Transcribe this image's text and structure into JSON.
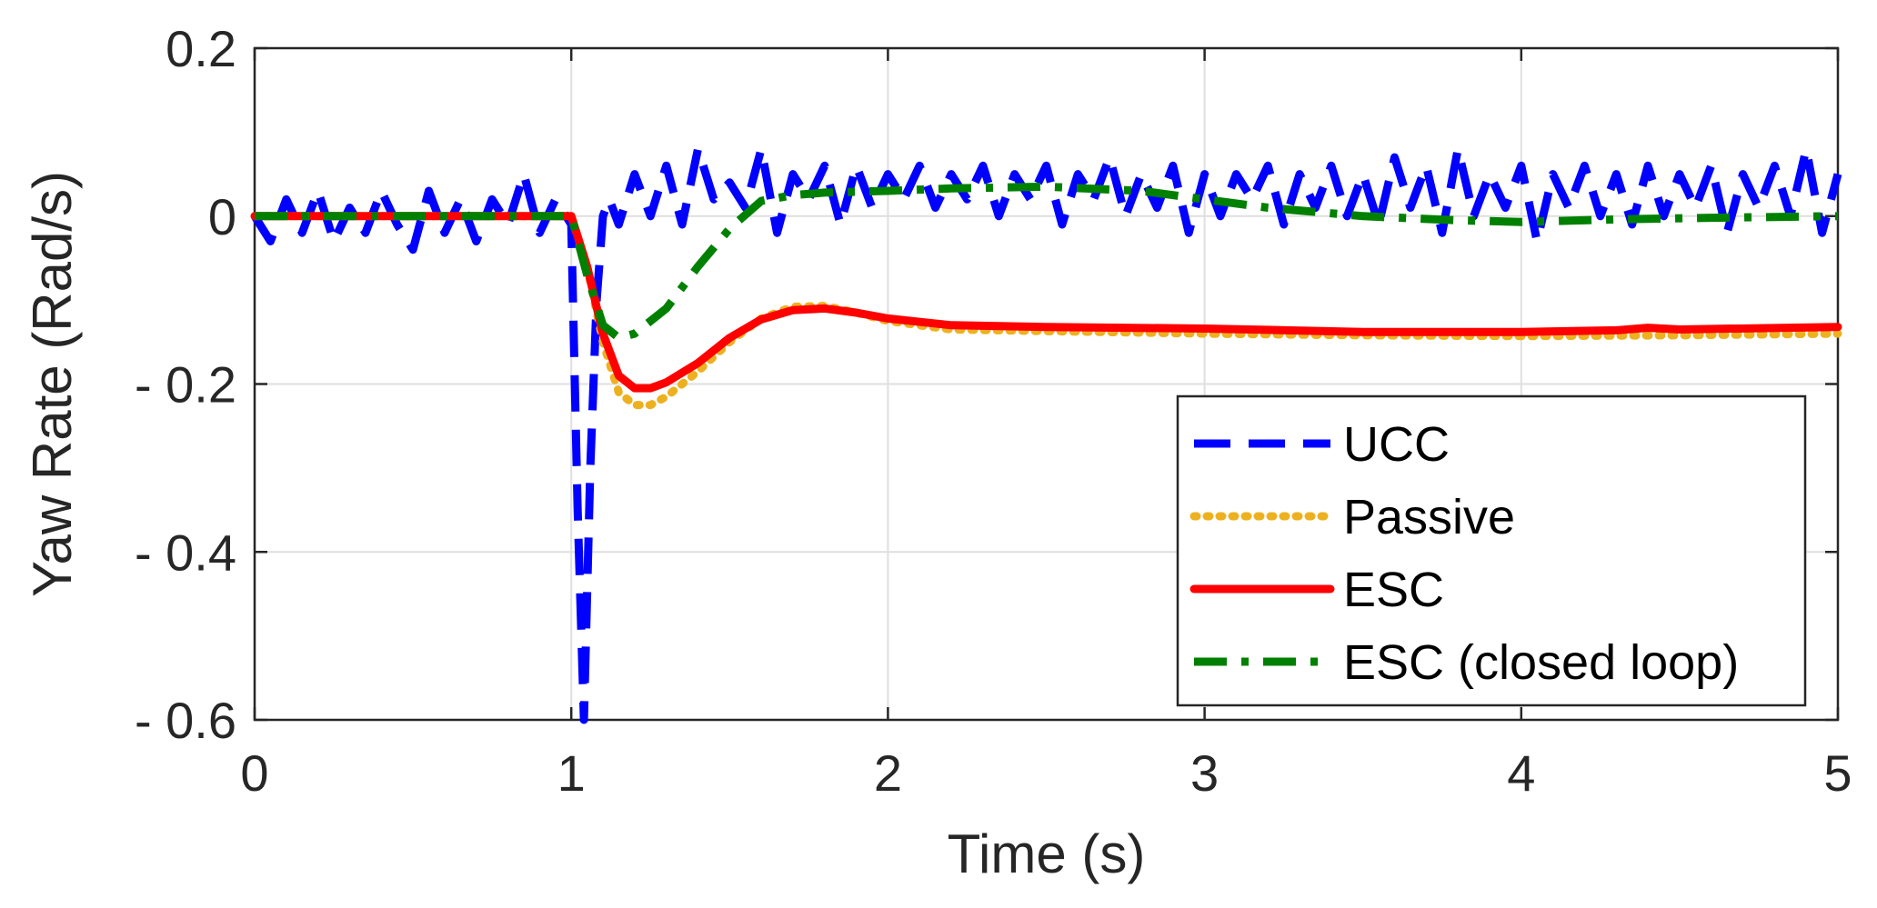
{
  "chart_data": {
    "type": "line",
    "title": "",
    "xlabel": "Time (s)",
    "ylabel": "Yaw Rate (Rad/s)",
    "xlim": [
      0,
      5
    ],
    "ylim": [
      -0.6,
      0.2
    ],
    "xticks": [
      0,
      1,
      2,
      3,
      4,
      5
    ],
    "xtick_labels": [
      "0",
      "1",
      "2",
      "3",
      "4",
      "5"
    ],
    "yticks": [
      0.2,
      0,
      -0.2,
      -0.4,
      -0.6
    ],
    "ytick_labels": [
      "0.2",
      "0",
      "- 0.2",
      "- 0.4",
      "- 0.6"
    ],
    "grid": true,
    "legend_position": "bottom-right",
    "series": [
      {
        "name": "UCC",
        "color": "#0000ff",
        "style": "dashed",
        "x": [
          0,
          0.05,
          0.1,
          0.15,
          0.2,
          0.25,
          0.3,
          0.35,
          0.4,
          0.45,
          0.5,
          0.55,
          0.6,
          0.65,
          0.7,
          0.75,
          0.8,
          0.85,
          0.9,
          0.95,
          1.0,
          1.02,
          1.04,
          1.06,
          1.08,
          1.1,
          1.12,
          1.15,
          1.2,
          1.25,
          1.3,
          1.35,
          1.4,
          1.45,
          1.5,
          1.55,
          1.6,
          1.65,
          1.7,
          1.75,
          1.8,
          1.85,
          1.9,
          1.95,
          2.0,
          2.05,
          2.1,
          2.15,
          2.2,
          2.25,
          2.3,
          2.35,
          2.4,
          2.45,
          2.5,
          2.55,
          2.6,
          2.65,
          2.7,
          2.75,
          2.8,
          2.85,
          2.9,
          2.95,
          3.0,
          3.05,
          3.1,
          3.15,
          3.2,
          3.25,
          3.3,
          3.35,
          3.4,
          3.45,
          3.5,
          3.55,
          3.6,
          3.65,
          3.7,
          3.75,
          3.8,
          3.85,
          3.9,
          3.95,
          4.0,
          4.05,
          4.1,
          4.15,
          4.2,
          4.25,
          4.3,
          4.35,
          4.4,
          4.45,
          4.5,
          4.55,
          4.6,
          4.65,
          4.7,
          4.75,
          4.8,
          4.85,
          4.9,
          4.95,
          5.0
        ],
        "y": [
          0,
          -0.03,
          0.02,
          -0.02,
          0.03,
          -0.03,
          0.01,
          -0.02,
          0.03,
          -0.01,
          -0.04,
          0.03,
          -0.02,
          0.02,
          -0.03,
          0.02,
          -0.01,
          0.05,
          -0.02,
          0.02,
          -0.01,
          -0.35,
          -0.6,
          -0.3,
          -0.1,
          0.0,
          0.02,
          -0.01,
          0.05,
          0.0,
          0.06,
          -0.01,
          0.08,
          0.02,
          0.04,
          0.01,
          0.08,
          -0.02,
          0.05,
          0.02,
          0.06,
          -0.01,
          0.06,
          0.01,
          0.05,
          0.02,
          0.06,
          0.01,
          0.05,
          0.02,
          0.06,
          0.0,
          0.05,
          0.02,
          0.06,
          -0.01,
          0.05,
          0.02,
          0.07,
          0.0,
          0.05,
          0.01,
          0.06,
          -0.02,
          0.05,
          0.0,
          0.05,
          0.02,
          0.06,
          -0.01,
          0.05,
          0.01,
          0.06,
          0.0,
          0.05,
          -0.01,
          0.07,
          0.01,
          0.06,
          -0.02,
          0.08,
          0.0,
          0.05,
          0.01,
          0.06,
          -0.03,
          0.05,
          0.01,
          0.06,
          0.0,
          0.05,
          -0.01,
          0.06,
          0.0,
          0.05,
          0.01,
          0.06,
          -0.02,
          0.05,
          0.01,
          0.06,
          0.0,
          0.08,
          -0.02,
          0.05
        ]
      },
      {
        "name": "Passive",
        "color": "#edb120",
        "style": "dotted",
        "x": [
          0,
          0.5,
          1.0,
          1.05,
          1.1,
          1.15,
          1.2,
          1.25,
          1.3,
          1.4,
          1.5,
          1.6,
          1.7,
          1.8,
          1.9,
          2.0,
          2.2,
          2.5,
          3.0,
          3.5,
          4.0,
          4.5,
          5.0
        ],
        "y": [
          0,
          0,
          0,
          -0.06,
          -0.15,
          -0.21,
          -0.225,
          -0.225,
          -0.215,
          -0.185,
          -0.15,
          -0.122,
          -0.108,
          -0.107,
          -0.115,
          -0.125,
          -0.135,
          -0.137,
          -0.14,
          -0.142,
          -0.143,
          -0.142,
          -0.14
        ]
      },
      {
        "name": "ESC",
        "color": "#ff0000",
        "style": "solid",
        "x": [
          0,
          0.5,
          1.0,
          1.05,
          1.1,
          1.15,
          1.2,
          1.25,
          1.3,
          1.4,
          1.5,
          1.6,
          1.7,
          1.8,
          1.9,
          2.0,
          2.2,
          2.5,
          3.0,
          3.5,
          4.0,
          4.3,
          4.4,
          4.5,
          5.0
        ],
        "y": [
          0,
          0,
          0,
          -0.06,
          -0.14,
          -0.19,
          -0.205,
          -0.205,
          -0.198,
          -0.175,
          -0.145,
          -0.123,
          -0.112,
          -0.11,
          -0.115,
          -0.122,
          -0.13,
          -0.132,
          -0.134,
          -0.138,
          -0.138,
          -0.136,
          -0.133,
          -0.135,
          -0.132
        ]
      },
      {
        "name": "ESC (closed loop)",
        "color": "#008000",
        "style": "dashdot",
        "x": [
          0,
          0.5,
          1.0,
          1.05,
          1.1,
          1.15,
          1.2,
          1.3,
          1.4,
          1.5,
          1.6,
          1.7,
          1.8,
          2.0,
          2.2,
          2.5,
          2.8,
          3.0,
          3.2,
          3.5,
          3.8,
          4.0,
          4.3,
          4.6,
          5.0
        ],
        "y": [
          0,
          0,
          0,
          -0.07,
          -0.13,
          -0.145,
          -0.14,
          -0.11,
          -0.06,
          -0.015,
          0.018,
          0.025,
          0.028,
          0.03,
          0.033,
          0.035,
          0.03,
          0.02,
          0.01,
          0.0,
          -0.005,
          -0.007,
          -0.004,
          -0.002,
          0.0
        ]
      }
    ]
  }
}
